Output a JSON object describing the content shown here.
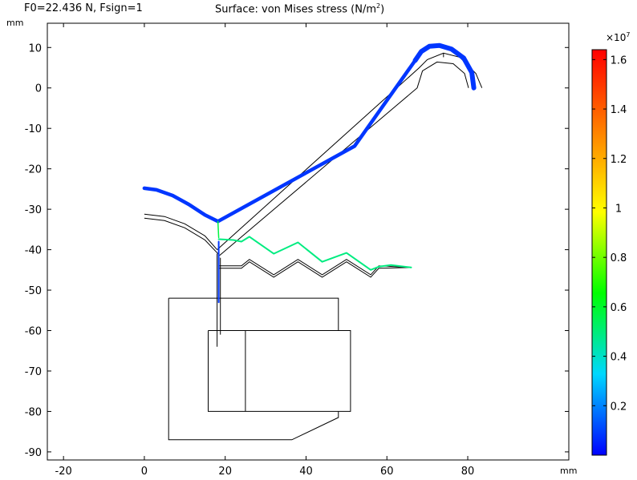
{
  "header": {
    "parameter_text": "F0=22.436 N, Fsign=1",
    "title_prefix": "Surface: von Mises stress (N/m",
    "title_sup": "2",
    "title_suffix": ")"
  },
  "colorbar": {
    "multiplier_base": "×10",
    "multiplier_exp": "7",
    "ticks": [
      {
        "value": 0.2,
        "label": "0.2"
      },
      {
        "value": 0.4,
        "label": "0.4"
      },
      {
        "value": 0.6,
        "label": "0.6"
      },
      {
        "value": 0.8,
        "label": "0.8"
      },
      {
        "value": 1.0,
        "label": "1"
      },
      {
        "value": 1.2,
        "label": "1.2"
      },
      {
        "value": 1.4,
        "label": "1.4"
      },
      {
        "value": 1.6,
        "label": "1.6"
      }
    ],
    "range": [
      0.0,
      1.64
    ],
    "colormap": [
      "#0000ff",
      "#00d8ff",
      "#00ff00",
      "#ffff00",
      "#ff8000",
      "#ff0000"
    ]
  },
  "chart_data": {
    "type": "surface-2d",
    "units": {
      "x": "mm",
      "y": "mm"
    },
    "xlim": [
      -24,
      105
    ],
    "ylim": [
      -92,
      16
    ],
    "x_ticks": [
      -20,
      0,
      20,
      40,
      60,
      80
    ],
    "y_ticks": [
      10,
      0,
      -10,
      -20,
      -30,
      -40,
      -50,
      -60,
      -70,
      -80,
      -90
    ],
    "grid": false,
    "geometry_outlines": [
      {
        "part": "arm-outer",
        "points": [
          [
            18,
            -40
          ],
          [
            68,
            5
          ],
          [
            70,
            7
          ],
          [
            74,
            8.6
          ],
          [
            78,
            7.6
          ],
          [
            82,
            3.6
          ],
          [
            83.5,
            0
          ]
        ]
      },
      {
        "part": "arm-inner",
        "points": [
          [
            18.6,
            -41.4
          ],
          [
            67.5,
            0
          ],
          [
            68.8,
            4.2
          ],
          [
            72.4,
            6.4
          ],
          [
            76.4,
            6
          ],
          [
            79.2,
            3.6
          ],
          [
            80.2,
            0
          ]
        ]
      },
      {
        "part": "arm-tab",
        "points": [
          [
            74,
            7.6
          ],
          [
            74,
            8.6
          ]
        ]
      },
      {
        "part": "arc-outer",
        "points": [
          [
            0,
            -31.2
          ],
          [
            5,
            -31.8
          ],
          [
            10,
            -33.6
          ],
          [
            15,
            -36.6
          ],
          [
            18,
            -40
          ]
        ]
      },
      {
        "part": "arc-inner",
        "points": [
          [
            0,
            -32.2
          ],
          [
            5,
            -32.8
          ],
          [
            10,
            -34.6
          ],
          [
            15,
            -37.6
          ],
          [
            18.6,
            -41.4
          ]
        ]
      },
      {
        "part": "zigzag-upper",
        "points": [
          [
            18.4,
            -44
          ],
          [
            24,
            -44
          ],
          [
            26,
            -42.4
          ],
          [
            32,
            -46.2
          ],
          [
            38,
            -42.4
          ],
          [
            44,
            -46.2
          ],
          [
            50,
            -42.4
          ],
          [
            56,
            -46.2
          ],
          [
            58,
            -44
          ],
          [
            66,
            -44.4
          ]
        ]
      },
      {
        "part": "zigzag-lower",
        "points": [
          [
            18.4,
            -44.6
          ],
          [
            24,
            -44.6
          ],
          [
            26,
            -43
          ],
          [
            32,
            -46.8
          ],
          [
            38,
            -43
          ],
          [
            44,
            -46.8
          ],
          [
            50,
            -43
          ],
          [
            56,
            -46.8
          ],
          [
            58,
            -44.6
          ],
          [
            66,
            -44.4
          ]
        ]
      },
      {
        "part": "shaft",
        "points": [
          [
            18,
            -41
          ],
          [
            18,
            -64
          ]
        ]
      },
      {
        "part": "shaft-2",
        "points": [
          [
            18.8,
            -42
          ],
          [
            18.8,
            -61
          ]
        ]
      },
      {
        "part": "body-frame",
        "points": [
          [
            6,
            -52
          ],
          [
            48,
            -52
          ],
          [
            48,
            -60
          ]
        ]
      },
      {
        "part": "body-frame-lower",
        "points": [
          [
            6,
            -52
          ],
          [
            6,
            -87
          ],
          [
            36.5,
            -87
          ],
          [
            48,
            -81.5
          ],
          [
            48,
            -80
          ]
        ]
      },
      {
        "part": "inner-box",
        "points": [
          [
            15.8,
            -60
          ],
          [
            51,
            -60
          ],
          [
            51,
            -80
          ],
          [
            15.8,
            -80
          ],
          [
            15.8,
            -60
          ]
        ]
      },
      {
        "part": "divider",
        "points": [
          [
            25,
            -60
          ],
          [
            25,
            -80
          ]
        ]
      }
    ],
    "stress_bands": [
      {
        "part": "arm-top",
        "points": [
          [
            0,
            -24.8
          ],
          [
            3,
            -25.2
          ],
          [
            7,
            -26.6
          ],
          [
            11,
            -28.8
          ],
          [
            15,
            -31.4
          ],
          [
            18.2,
            -33
          ],
          [
            52,
            -14.4
          ],
          [
            67,
            6.8
          ]
        ],
        "stress_level": 0.05
      },
      {
        "part": "arm-cap",
        "points": [
          [
            67,
            6.8
          ],
          [
            68.5,
            9
          ],
          [
            70.5,
            10.3
          ],
          [
            73,
            10.5
          ],
          [
            76,
            9.6
          ],
          [
            79,
            7.4
          ],
          [
            81,
            3.8
          ],
          [
            81.5,
            0
          ]
        ],
        "stress_level": 0.05
      },
      {
        "part": "hinge-stem",
        "points": [
          [
            18.2,
            -33
          ],
          [
            18.4,
            -37
          ]
        ],
        "stress_level": 0.35
      },
      {
        "part": "spring",
        "points": [
          [
            18.4,
            -37.4
          ],
          [
            22,
            -37.6
          ],
          [
            24,
            -38
          ],
          [
            26,
            -36.8
          ],
          [
            32,
            -41
          ],
          [
            38,
            -38.2
          ],
          [
            44,
            -43
          ],
          [
            50,
            -40.8
          ],
          [
            56,
            -45
          ],
          [
            58,
            -44.2
          ],
          [
            61,
            -43.8
          ],
          [
            66,
            -44.4
          ]
        ],
        "stress_level": 0.3
      },
      {
        "part": "shaft",
        "points": [
          [
            18.4,
            -38
          ],
          [
            18.4,
            -53
          ]
        ],
        "stress_level": 0.05
      }
    ],
    "colorbar_range": [
      0.0,
      1.64
    ],
    "colorbar_multiplier": "1e7"
  }
}
